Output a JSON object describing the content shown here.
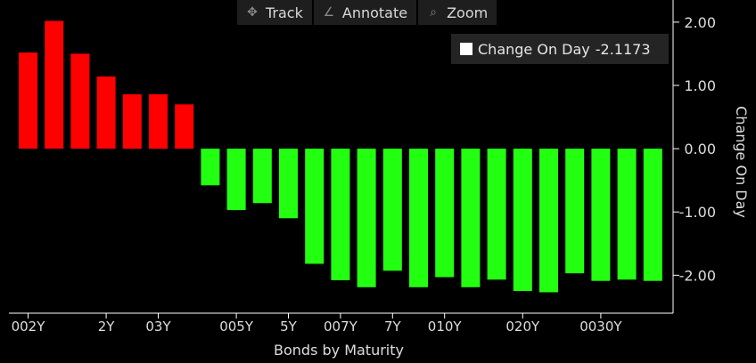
{
  "toolbar": {
    "track_label": "Track",
    "annotate_label": "Annotate",
    "zoom_label": "Zoom"
  },
  "legend": {
    "label": "Change On Day",
    "value": "-2.1173"
  },
  "colors": {
    "positive": "#ff0000",
    "negative": "#22ff11",
    "background": "#000000",
    "axis": "#ffffff"
  },
  "chart_data": {
    "type": "bar",
    "xlabel": "Bonds by Maturity",
    "ylabel": "Change On Day",
    "ylim": [
      -2.6,
      2.35
    ],
    "yticks": [
      2.0,
      1.0,
      0.0,
      -1.0,
      -2.0
    ],
    "ytick_labels": [
      "2.00",
      "1.00",
      "0.00",
      "-1.00",
      "-2.00"
    ],
    "y_axis_side": "right",
    "grid": false,
    "x_tick_labels": [
      {
        "label": "002Y",
        "index": 0
      },
      {
        "label": "2Y",
        "index": 3
      },
      {
        "label": "03Y",
        "index": 5
      },
      {
        "label": "005Y",
        "index": 8
      },
      {
        "label": "5Y",
        "index": 10
      },
      {
        "label": "007Y",
        "index": 12
      },
      {
        "label": "7Y",
        "index": 14
      },
      {
        "label": "010Y",
        "index": 16
      },
      {
        "label": "020Y",
        "index": 19
      },
      {
        "label": "0030Y",
        "index": 22
      }
    ],
    "values": [
      1.52,
      2.02,
      1.5,
      1.14,
      0.86,
      0.86,
      0.7,
      -0.58,
      -0.97,
      -0.86,
      -1.1,
      -1.82,
      -2.08,
      -2.19,
      -1.93,
      -2.19,
      -2.03,
      -2.19,
      -2.07,
      -2.25,
      -2.27,
      -1.97,
      -2.09,
      -2.07,
      -2.09
    ]
  }
}
